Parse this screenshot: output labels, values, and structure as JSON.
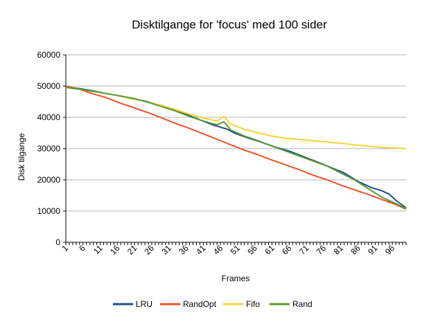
{
  "chart_data": {
    "type": "line",
    "title": "Disktilgange for 'focus' med 100 sider",
    "xlabel": "Frames",
    "ylabel": "Disk tilgange",
    "ylim": [
      0,
      60000
    ],
    "y_ticks": [
      0,
      10000,
      20000,
      30000,
      40000,
      50000,
      60000
    ],
    "x_range": [
      1,
      100
    ],
    "x_tick_labels": [
      "1",
      "6",
      "11",
      "16",
      "21",
      "26",
      "31",
      "36",
      "41",
      "46",
      "51",
      "56",
      "61",
      "66",
      "71",
      "76",
      "81",
      "86",
      "91",
      "96"
    ],
    "grid": true,
    "legend_position": "bottom",
    "series": [
      {
        "name": "LRU",
        "color": "#1f4e89",
        "points": [
          [
            1,
            49800
          ],
          [
            5,
            49200
          ],
          [
            9,
            48500
          ],
          [
            13,
            47500
          ],
          [
            17,
            46800
          ],
          [
            20,
            46000
          ],
          [
            24,
            45200
          ],
          [
            28,
            44000
          ],
          [
            32,
            42500
          ],
          [
            36,
            41000
          ],
          [
            40,
            39200
          ],
          [
            44,
            37500
          ],
          [
            48,
            36200
          ],
          [
            50,
            35000
          ],
          [
            54,
            33400
          ],
          [
            58,
            32000
          ],
          [
            62,
            30500
          ],
          [
            66,
            29200
          ],
          [
            70,
            27500
          ],
          [
            74,
            25800
          ],
          [
            78,
            24000
          ],
          [
            82,
            22200
          ],
          [
            86,
            19500
          ],
          [
            90,
            17500
          ],
          [
            93,
            16500
          ],
          [
            95,
            15500
          ],
          [
            97,
            13500
          ],
          [
            100,
            11000
          ]
        ]
      },
      {
        "name": "RandOpt",
        "color": "#f0502a",
        "points": [
          [
            1,
            50000
          ],
          [
            5,
            49000
          ],
          [
            9,
            47500
          ],
          [
            13,
            46200
          ],
          [
            17,
            44500
          ],
          [
            21,
            43000
          ],
          [
            25,
            41500
          ],
          [
            29,
            39800
          ],
          [
            33,
            38000
          ],
          [
            37,
            36500
          ],
          [
            41,
            34700
          ],
          [
            45,
            33000
          ],
          [
            49,
            31200
          ],
          [
            53,
            29500
          ],
          [
            57,
            28000
          ],
          [
            61,
            26300
          ],
          [
            65,
            24800
          ],
          [
            69,
            23200
          ],
          [
            73,
            21500
          ],
          [
            77,
            20000
          ],
          [
            81,
            18300
          ],
          [
            85,
            16800
          ],
          [
            89,
            15300
          ],
          [
            93,
            13700
          ],
          [
            97,
            12100
          ],
          [
            100,
            10600
          ]
        ]
      },
      {
        "name": "Fifo",
        "color": "#f5d43a",
        "points": [
          [
            1,
            49500
          ],
          [
            5,
            49000
          ],
          [
            9,
            48300
          ],
          [
            13,
            47500
          ],
          [
            17,
            46700
          ],
          [
            21,
            45800
          ],
          [
            25,
            44800
          ],
          [
            29,
            43800
          ],
          [
            33,
            42500
          ],
          [
            37,
            41000
          ],
          [
            41,
            39800
          ],
          [
            45,
            38800
          ],
          [
            47,
            40300
          ],
          [
            49,
            37800
          ],
          [
            53,
            36200
          ],
          [
            57,
            35000
          ],
          [
            61,
            34000
          ],
          [
            65,
            33300
          ],
          [
            69,
            32900
          ],
          [
            73,
            32500
          ],
          [
            77,
            32100
          ],
          [
            81,
            31700
          ],
          [
            85,
            31200
          ],
          [
            89,
            30800
          ],
          [
            93,
            30400
          ],
          [
            97,
            30200
          ],
          [
            100,
            30000
          ]
        ]
      },
      {
        "name": "Rand",
        "color": "#5a9b32",
        "points": [
          [
            1,
            49600
          ],
          [
            5,
            49000
          ],
          [
            9,
            48300
          ],
          [
            13,
            47600
          ],
          [
            17,
            46800
          ],
          [
            21,
            46000
          ],
          [
            25,
            44800
          ],
          [
            29,
            43400
          ],
          [
            33,
            42000
          ],
          [
            37,
            40300
          ],
          [
            41,
            38800
          ],
          [
            45,
            37600
          ],
          [
            47,
            38600
          ],
          [
            49,
            35900
          ],
          [
            53,
            34000
          ],
          [
            57,
            32500
          ],
          [
            61,
            30800
          ],
          [
            65,
            29200
          ],
          [
            69,
            27600
          ],
          [
            73,
            26000
          ],
          [
            77,
            24400
          ],
          [
            81,
            22200
          ],
          [
            85,
            20000
          ],
          [
            89,
            17200
          ],
          [
            93,
            14400
          ],
          [
            97,
            12400
          ],
          [
            100,
            10800
          ]
        ]
      }
    ]
  }
}
